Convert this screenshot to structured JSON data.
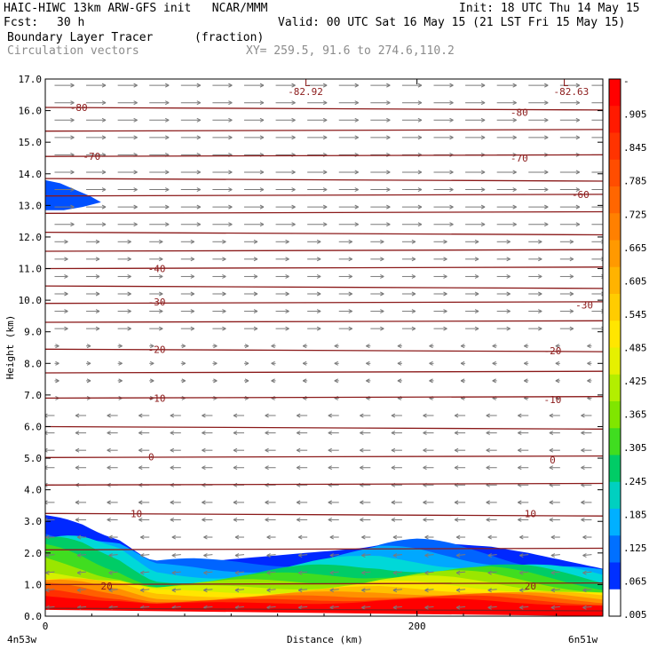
{
  "header": {
    "title_left": "HAIC-HIWC 13km ARW-GFS init   NCAR/MMM",
    "init": "Init: 18 UTC Thu 14 May 15",
    "fcst_label": "Fcst:",
    "fcst_value": "30 h",
    "valid": "Valid: 00 UTC Sat 16 May 15 (21 LST Fri 15 May 15)",
    "field_name": "Boundary Layer Tracer",
    "field_units": "(fraction)",
    "overlay_name": "Circulation vectors",
    "xy_range": "XY= 259.5, 91.6 to 274.6,110.2"
  },
  "chart_data": {
    "type": "heatmap",
    "subtype": "vertical cross-section with filled contours, line contours and vectors",
    "xlabel": "Distance (km)",
    "ylabel": "Height (km)",
    "xlim": [
      0,
      300
    ],
    "ylim": [
      0,
      17
    ],
    "x_ticks": [
      0,
      200
    ],
    "y_ticks": [
      "0.0",
      "1.0",
      "2.0",
      "3.0",
      "4.0",
      "5.0",
      "6.0",
      "7.0",
      "8.0",
      "9.0",
      "10.0",
      "11.0",
      "12.0",
      "13.0",
      "14.0",
      "15.0",
      "16.0",
      "17.0"
    ],
    "x_endpoint_labels": {
      "left": "4n53w",
      "right": "6n51w"
    },
    "colorbar": {
      "labels": [
        "-",
        ".905",
        ".845",
        ".785",
        ".725",
        ".665",
        ".605",
        ".545",
        ".485",
        ".425",
        ".365",
        ".305",
        ".245",
        ".185",
        ".125",
        ".065",
        ".005"
      ],
      "colors": [
        "#ff0000",
        "#ff1a00",
        "#ff3300",
        "#ff4d00",
        "#ff6600",
        "#ff8000",
        "#ff9900",
        "#ffb300",
        "#ffcc00",
        "#ffe600",
        "#e6f000",
        "#b3ee00",
        "#80e600",
        "#40dd20",
        "#00cc66",
        "#00d0c0",
        "#00b0ff",
        "#0070ff",
        "#0030ff",
        "#ffffff"
      ]
    },
    "contour_labels": [
      {
        "text": "-82.92",
        "x": 140,
        "y": 16.6
      },
      {
        "text": "-82.63",
        "x": 283,
        "y": 16.6
      },
      {
        "text": "-80",
        "x": 18,
        "y": 16.1
      },
      {
        "text": "-80",
        "x": 255,
        "y": 15.95
      },
      {
        "text": "-70",
        "x": 25,
        "y": 14.55
      },
      {
        "text": "-70",
        "x": 255,
        "y": 14.5
      },
      {
        "text": "-60",
        "x": 288,
        "y": 13.35
      },
      {
        "text": "-40",
        "x": 60,
        "y": 11.0
      },
      {
        "text": "-30",
        "x": 60,
        "y": 9.95
      },
      {
        "text": "-30",
        "x": 290,
        "y": 9.85
      },
      {
        "text": "-20",
        "x": 60,
        "y": 8.45
      },
      {
        "text": "-20",
        "x": 273,
        "y": 8.4
      },
      {
        "text": "-10",
        "x": 60,
        "y": 6.9
      },
      {
        "text": "-10",
        "x": 273,
        "y": 6.85
      },
      {
        "text": "0",
        "x": 57,
        "y": 5.05
      },
      {
        "text": "0",
        "x": 273,
        "y": 4.95
      },
      {
        "text": "10",
        "x": 49,
        "y": 3.25
      },
      {
        "text": "10",
        "x": 261,
        "y": 3.25
      },
      {
        "text": "20",
        "x": 33,
        "y": 0.95
      },
      {
        "text": "20",
        "x": 261,
        "y": 0.95
      }
    ],
    "low_markers": [
      {
        "text": "L",
        "x": 141,
        "y": 17.0
      },
      {
        "text": "L",
        "x": 280,
        "y": 17.0
      }
    ],
    "contour_levels_y": [
      16.1,
      15.35,
      14.55,
      13.85,
      13.3,
      12.75,
      12.15,
      11.55,
      11.0,
      10.45,
      9.9,
      9.3,
      8.45,
      7.7,
      6.9,
      6.0,
      5.02,
      4.15,
      3.25,
      2.1,
      1.0,
      0.25
    ],
    "tracer_top_km": [
      [
        0,
        3.2
      ],
      [
        10,
        3.1
      ],
      [
        20,
        2.9
      ],
      [
        30,
        2.6
      ],
      [
        40,
        2.4
      ],
      [
        50,
        2.0
      ],
      [
        58,
        1.7
      ],
      [
        70,
        1.7
      ],
      [
        90,
        1.75
      ],
      [
        110,
        1.85
      ],
      [
        130,
        1.95
      ],
      [
        150,
        2.05
      ],
      [
        170,
        2.15
      ],
      [
        180,
        2.25
      ],
      [
        200,
        2.3
      ],
      [
        220,
        2.28
      ],
      [
        240,
        2.2
      ],
      [
        260,
        2.0
      ],
      [
        280,
        1.75
      ],
      [
        300,
        1.5
      ]
    ],
    "upper_blob": [
      [
        0,
        13.8
      ],
      [
        8,
        13.7
      ],
      [
        16,
        13.5
      ],
      [
        24,
        13.3
      ],
      [
        30,
        13.1
      ],
      [
        20,
        12.95
      ],
      [
        10,
        12.85
      ],
      [
        0,
        12.85
      ]
    ]
  }
}
